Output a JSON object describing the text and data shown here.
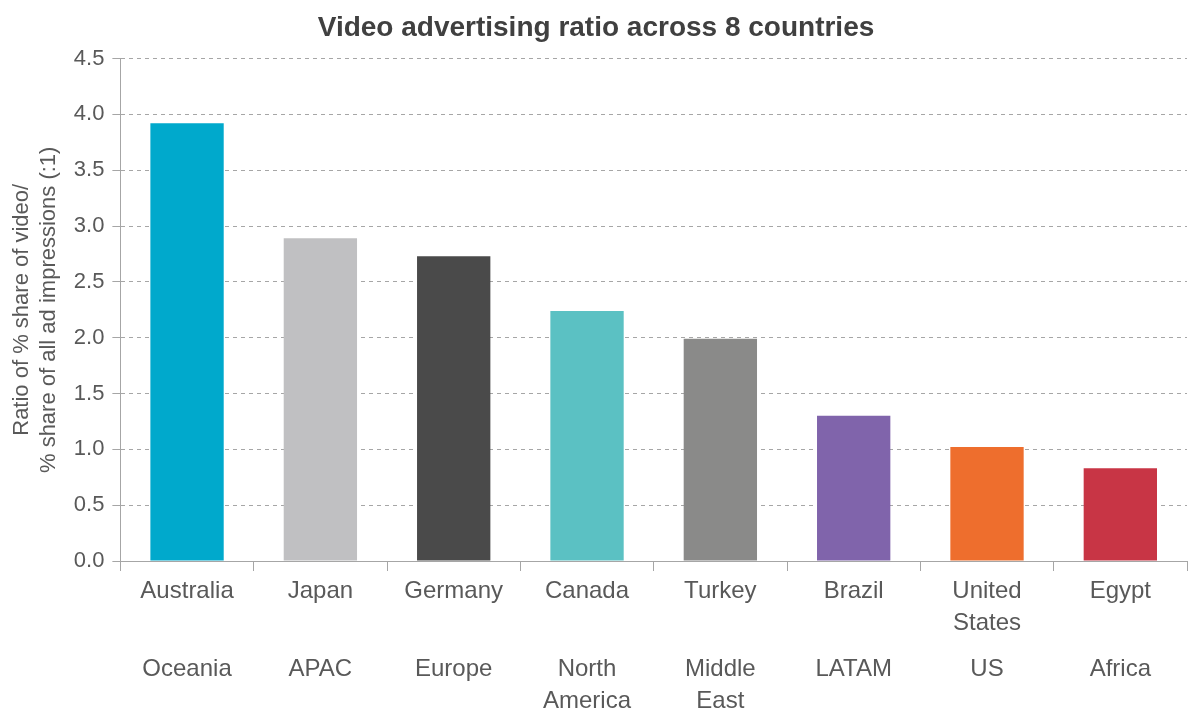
{
  "chart_data": {
    "type": "bar",
    "title": "Video advertising ratio across 8 countries",
    "ylabel": "Ratio of % share of video/\n% share of all ad impressions (:1)",
    "categories": [
      "Australia\nOceania",
      "Japan\nAPAC",
      "Germany\nEurope",
      "Canada\nNorth America",
      "Turkey\nMiddle East",
      "Brazil\nLATAM",
      "United States\nUS",
      "Egypt\nAfrica"
    ],
    "values": [
      3.92,
      2.89,
      2.73,
      2.24,
      1.99,
      1.3,
      1.02,
      0.83
    ],
    "colors": [
      "#00a9cc",
      "#c0c0c2",
      "#4a4a4a",
      "#5bc1c3",
      "#8a8a89",
      "#8064ab",
      "#ee6e2d",
      "#c83545"
    ],
    "ylim": [
      0,
      4.5
    ],
    "yticks": [
      {
        "value": 0,
        "label": "0.0"
      },
      {
        "value": 0.5,
        "label": "0.5"
      },
      {
        "value": 1,
        "label": "1.0"
      },
      {
        "value": 1.5,
        "label": "1.5"
      },
      {
        "value": 2,
        "label": "2.0"
      },
      {
        "value": 2.5,
        "label": "2.5"
      },
      {
        "value": 3,
        "label": "3.0"
      },
      {
        "value": 3.5,
        "label": "3.5"
      },
      {
        "value": 4,
        "label": "4.0"
      },
      {
        "value": 4.5,
        "label": "4.5"
      }
    ],
    "grid": "y",
    "legend": false
  }
}
